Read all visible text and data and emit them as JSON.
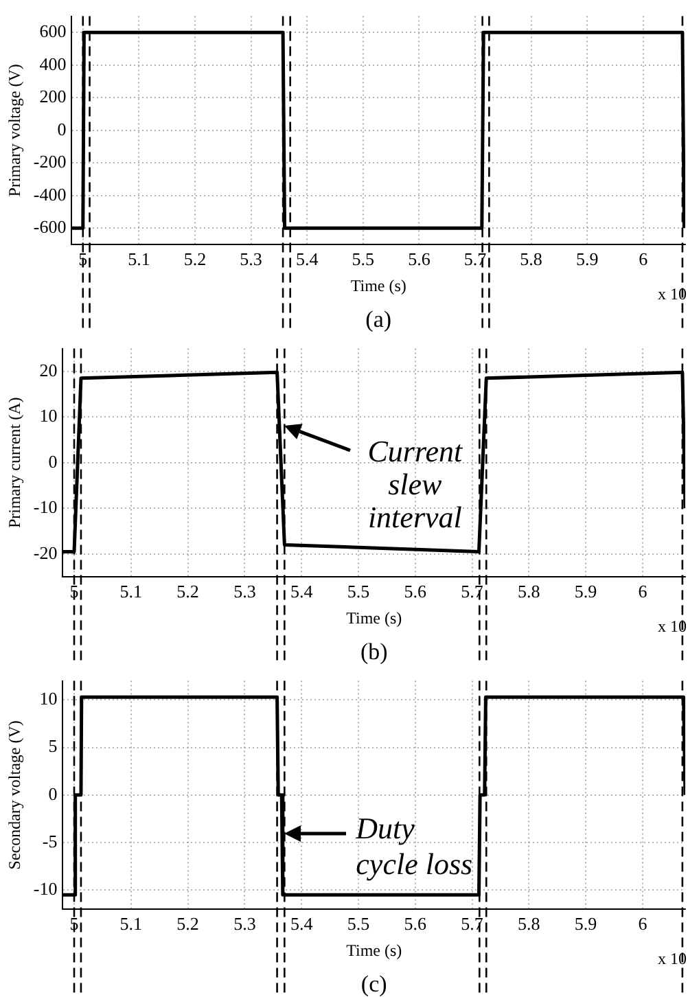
{
  "chart_data": [
    {
      "type": "line",
      "xlabel": "Time (s)",
      "ylabel": "Primary voltage (V)",
      "annotations": [
        "(a)",
        "x 10"
      ],
      "x": [
        4.98,
        5.0,
        5.002,
        5.357,
        5.36,
        5.712,
        5.715,
        6.07,
        6.073
      ],
      "series": [
        {
          "color": "#000000",
          "values": [
            -600,
            -600,
            600,
            600,
            -600,
            -600,
            600,
            600,
            -600
          ]
        }
      ],
      "xlim": [
        4.98,
        6.075
      ],
      "xticks": [
        5,
        5.1,
        5.2,
        5.3,
        5.4,
        5.5,
        5.6,
        5.7,
        5.8,
        5.9,
        6
      ],
      "ylim": [
        -700,
        700
      ],
      "yticks": [
        -600,
        -400,
        -200,
        0,
        200,
        400,
        600
      ],
      "grid": true,
      "legend": false,
      "marker": "none",
      "line_style": "solid",
      "ref_lines": [
        {
          "axis": "x",
          "value": 5.0,
          "line_style": "dashed",
          "color": "#000000"
        },
        {
          "axis": "x",
          "value": 5.012,
          "line_style": "dashed",
          "color": "#000000"
        },
        {
          "axis": "x",
          "value": 5.357,
          "line_style": "dashed",
          "color": "#000000"
        },
        {
          "axis": "x",
          "value": 5.37,
          "line_style": "dashed",
          "color": "#000000"
        },
        {
          "axis": "x",
          "value": 5.713,
          "line_style": "dashed",
          "color": "#000000"
        },
        {
          "axis": "x",
          "value": 5.725,
          "line_style": "dashed",
          "color": "#000000"
        },
        {
          "axis": "x",
          "value": 6.07,
          "line_style": "dashed",
          "color": "#000000"
        }
      ]
    },
    {
      "type": "line",
      "xlabel": "Time (s)",
      "ylabel": "Primary current (A)",
      "annotations": [
        "(b)",
        "x 10",
        {
          "text": "Current slew interval",
          "x": 5.37,
          "y": 8
        }
      ],
      "x": [
        4.98,
        5.0,
        5.012,
        5.357,
        5.37,
        5.712,
        5.725,
        6.07,
        6.075
      ],
      "series": [
        {
          "color": "#000000",
          "values": [
            -19.5,
            -19.5,
            18.5,
            19.8,
            -18,
            -19.5,
            18.5,
            19.8,
            -10
          ]
        }
      ],
      "xlim": [
        4.98,
        6.075
      ],
      "xticks": [
        5,
        5.1,
        5.2,
        5.3,
        5.4,
        5.5,
        5.6,
        5.7,
        5.8,
        5.9,
        6
      ],
      "ylim": [
        -25,
        25
      ],
      "yticks": [
        -20,
        -10,
        0,
        10,
        20
      ],
      "grid": true,
      "legend": false,
      "marker": "none",
      "line_style": "solid",
      "ref_lines": [
        {
          "axis": "x",
          "value": 5.0,
          "line_style": "dashed",
          "color": "#000000"
        },
        {
          "axis": "x",
          "value": 5.012,
          "line_style": "dashed",
          "color": "#000000"
        },
        {
          "axis": "x",
          "value": 5.357,
          "line_style": "dashed",
          "color": "#000000"
        },
        {
          "axis": "x",
          "value": 5.37,
          "line_style": "dashed",
          "color": "#000000"
        },
        {
          "axis": "x",
          "value": 5.713,
          "line_style": "dashed",
          "color": "#000000"
        },
        {
          "axis": "x",
          "value": 5.725,
          "line_style": "dashed",
          "color": "#000000"
        },
        {
          "axis": "x",
          "value": 6.07,
          "line_style": "dashed",
          "color": "#000000"
        }
      ]
    },
    {
      "type": "line",
      "xlabel": "Time (s)",
      "ylabel": "Secondary voltage (V)",
      "annotations": [
        "(c)",
        "x 10",
        {
          "text": "Duty cycle loss",
          "x": 5.37,
          "y": -4
        }
      ],
      "x": [
        4.98,
        5.0,
        5.002,
        5.012,
        5.013,
        5.357,
        5.359,
        5.365,
        5.367,
        5.712,
        5.714,
        5.722,
        5.724,
        6.072,
        6.075
      ],
      "series": [
        {
          "color": "#000000",
          "values": [
            -10.5,
            -10.5,
            0,
            0,
            10.3,
            10.3,
            0,
            0,
            -10.5,
            -10.5,
            0,
            0,
            10.3,
            10.3,
            0
          ]
        }
      ],
      "xlim": [
        4.98,
        6.075
      ],
      "xticks": [
        5,
        5.1,
        5.2,
        5.3,
        5.4,
        5.5,
        5.6,
        5.7,
        5.8,
        5.9,
        6
      ],
      "ylim": [
        -12,
        12
      ],
      "yticks": [
        -10,
        -5,
        0,
        5,
        10
      ],
      "grid": true,
      "legend": false,
      "marker": "none",
      "line_style": "solid",
      "ref_lines": [
        {
          "axis": "x",
          "value": 5.0,
          "line_style": "dashed",
          "color": "#000000"
        },
        {
          "axis": "x",
          "value": 5.012,
          "line_style": "dashed",
          "color": "#000000"
        },
        {
          "axis": "x",
          "value": 5.357,
          "line_style": "dashed",
          "color": "#000000"
        },
        {
          "axis": "x",
          "value": 5.37,
          "line_style": "dashed",
          "color": "#000000"
        },
        {
          "axis": "x",
          "value": 5.713,
          "line_style": "dashed",
          "color": "#000000"
        },
        {
          "axis": "x",
          "value": 5.725,
          "line_style": "dashed",
          "color": "#000000"
        },
        {
          "axis": "x",
          "value": 6.07,
          "line_style": "dashed",
          "color": "#000000"
        }
      ]
    }
  ]
}
